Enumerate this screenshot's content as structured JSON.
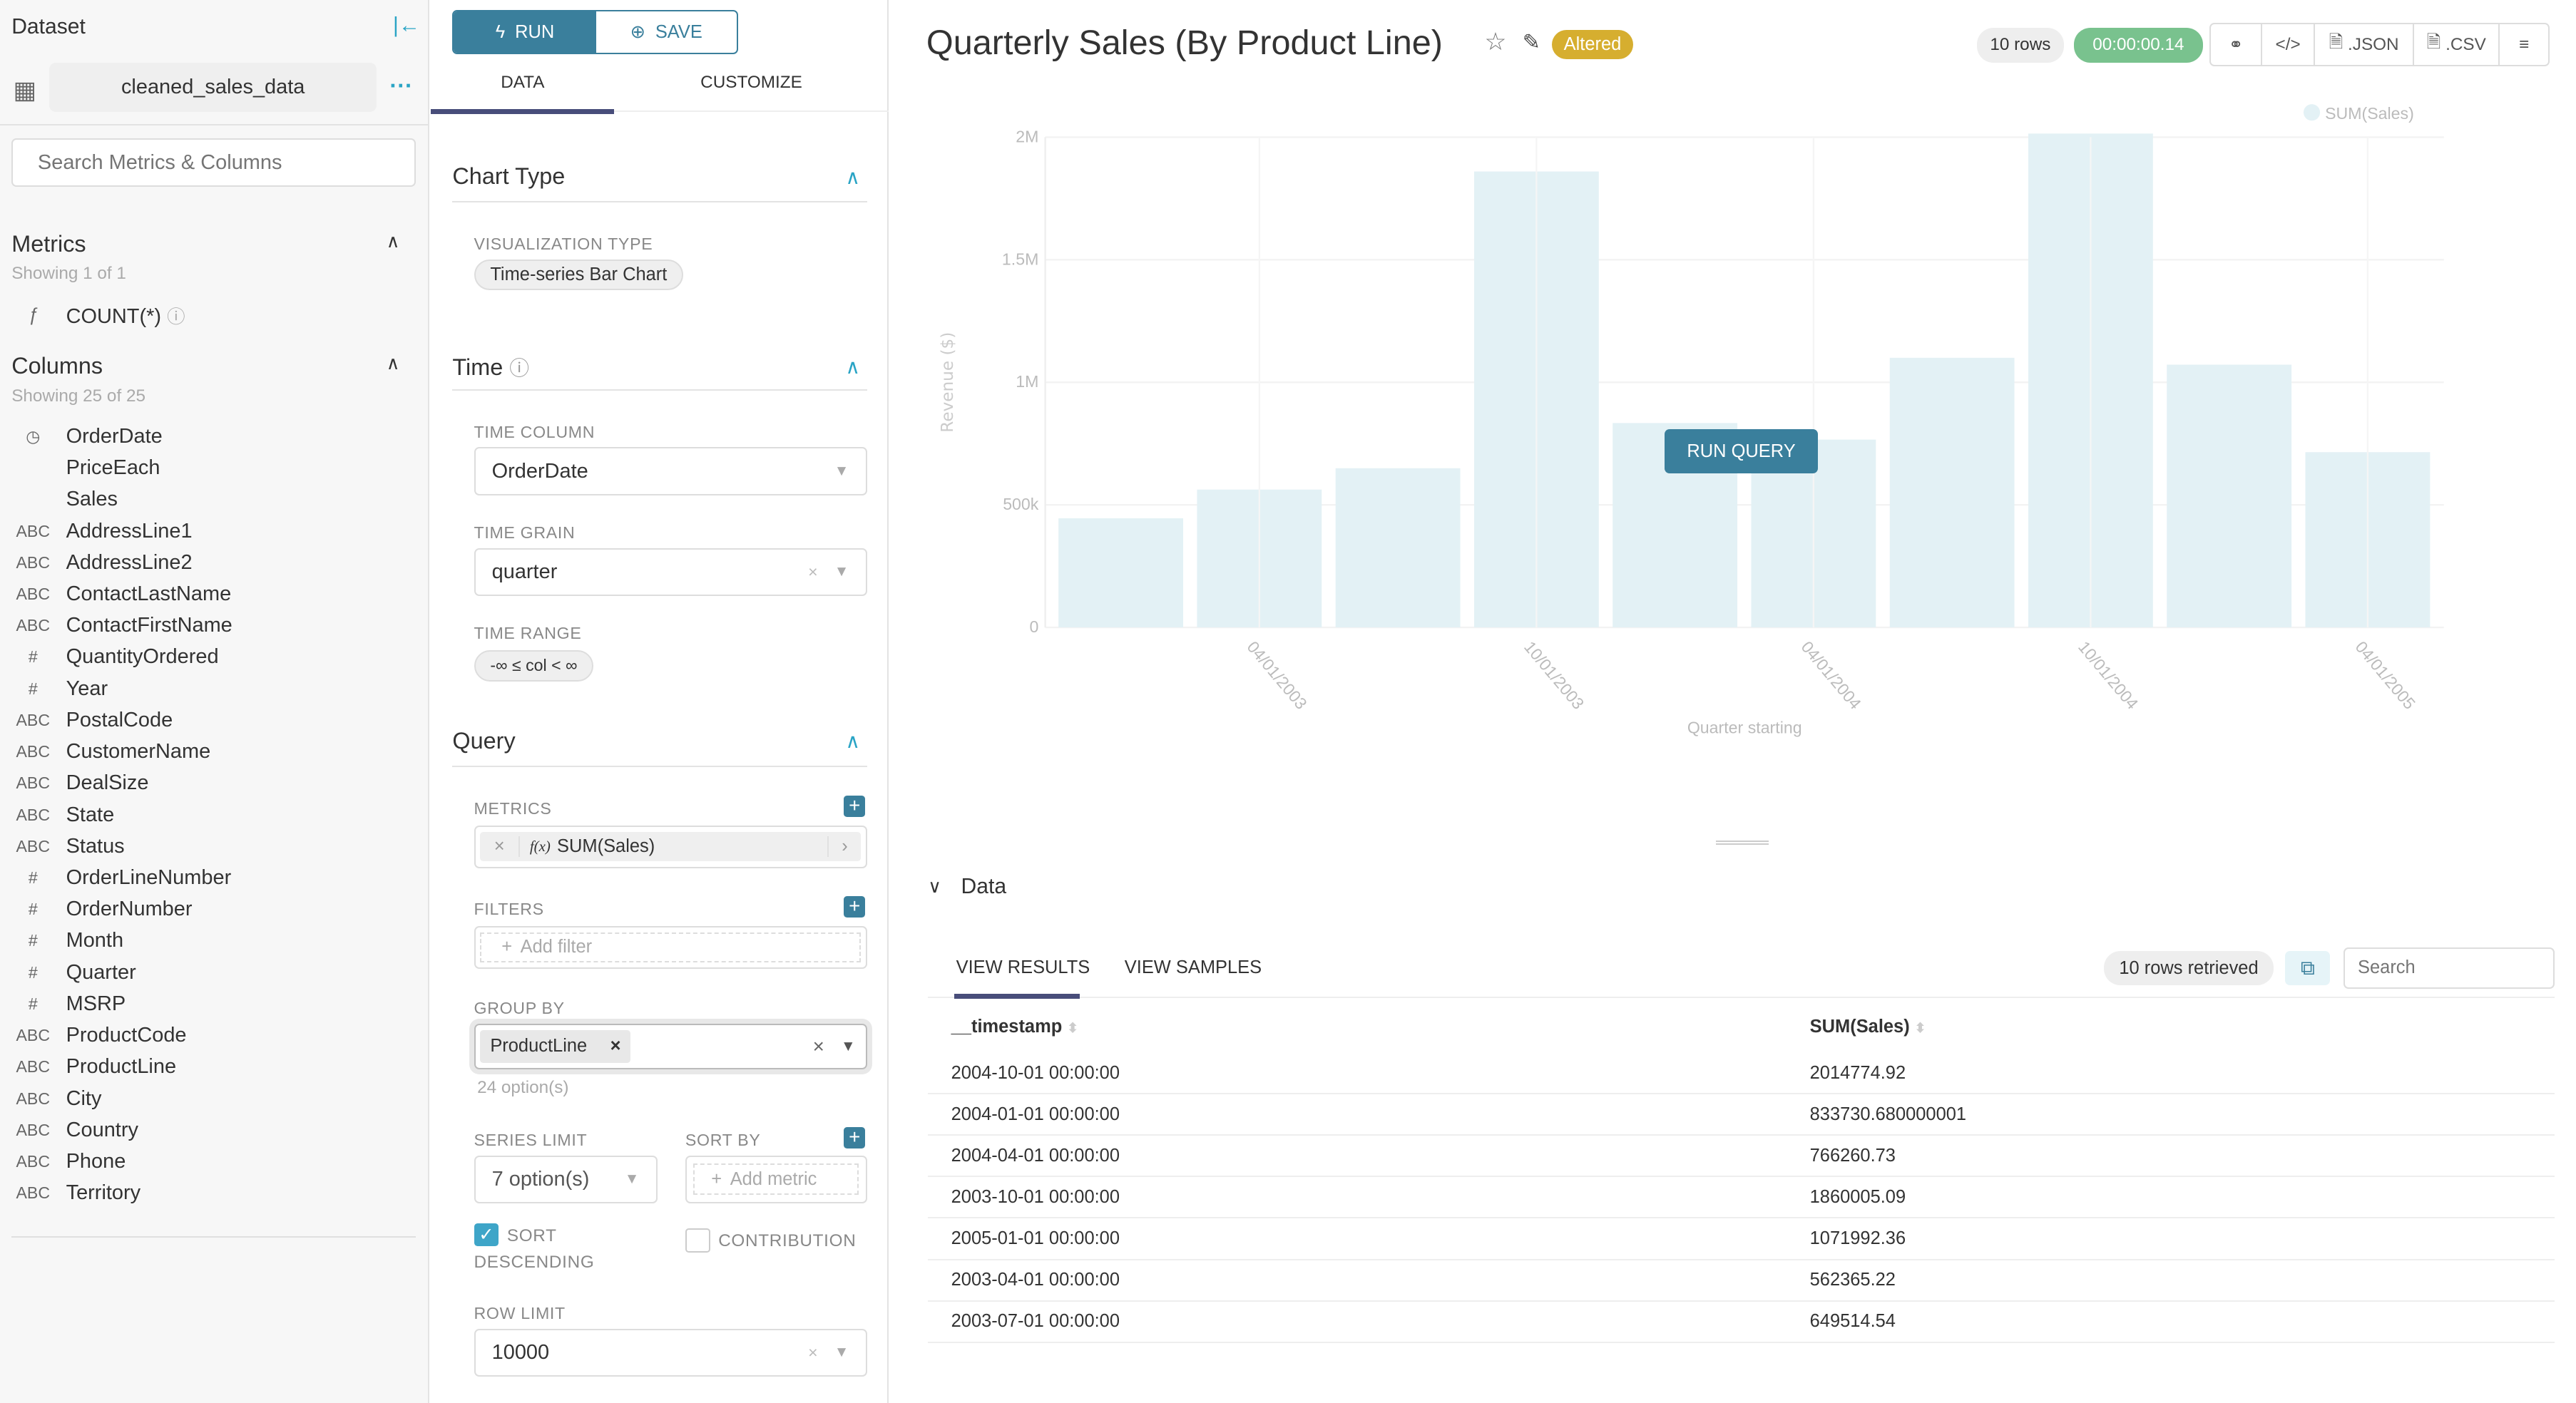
{
  "sidebar": {
    "title": "Dataset",
    "dataset_name": "cleaned_sales_data",
    "search_placeholder": "Search Metrics & Columns",
    "metrics_title": "Metrics",
    "metrics_count": "Showing 1 of 1",
    "metrics": [
      {
        "type": "ƒ",
        "label": "COUNT(*)"
      }
    ],
    "columns_title": "Columns",
    "columns_count": "Showing 25 of 25",
    "columns": [
      {
        "type": "clock",
        "label": "OrderDate"
      },
      {
        "type": "",
        "label": "PriceEach"
      },
      {
        "type": "",
        "label": "Sales"
      },
      {
        "type": "ABC",
        "label": "AddressLine1"
      },
      {
        "type": "ABC",
        "label": "AddressLine2"
      },
      {
        "type": "ABC",
        "label": "ContactLastName"
      },
      {
        "type": "ABC",
        "label": "ContactFirstName"
      },
      {
        "type": "#",
        "label": "QuantityOrdered"
      },
      {
        "type": "#",
        "label": "Year"
      },
      {
        "type": "ABC",
        "label": "PostalCode"
      },
      {
        "type": "ABC",
        "label": "CustomerName"
      },
      {
        "type": "ABC",
        "label": "DealSize"
      },
      {
        "type": "ABC",
        "label": "State"
      },
      {
        "type": "ABC",
        "label": "Status"
      },
      {
        "type": "#",
        "label": "OrderLineNumber"
      },
      {
        "type": "#",
        "label": "OrderNumber"
      },
      {
        "type": "#",
        "label": "Month"
      },
      {
        "type": "#",
        "label": "Quarter"
      },
      {
        "type": "#",
        "label": "MSRP"
      },
      {
        "type": "ABC",
        "label": "ProductCode"
      },
      {
        "type": "ABC",
        "label": "ProductLine"
      },
      {
        "type": "ABC",
        "label": "City"
      },
      {
        "type": "ABC",
        "label": "Country"
      },
      {
        "type": "ABC",
        "label": "Phone"
      },
      {
        "type": "ABC",
        "label": "Territory"
      }
    ]
  },
  "panel": {
    "run": "RUN",
    "save": "SAVE",
    "tabs": [
      "DATA",
      "CUSTOMIZE"
    ],
    "chart_type": {
      "title": "Chart Type",
      "viz_label": "VISUALIZATION TYPE",
      "viz_value": "Time-series Bar Chart"
    },
    "time": {
      "title": "Time",
      "col_label": "TIME COLUMN",
      "col_value": "OrderDate",
      "grain_label": "TIME GRAIN",
      "grain_value": "quarter",
      "range_label": "TIME RANGE",
      "range_value": "-∞ ≤ col < ∞"
    },
    "query": {
      "title": "Query",
      "metrics_label": "METRICS",
      "metric_value": "SUM(Sales)",
      "metric_prefix": "f(x)",
      "filters_label": "FILTERS",
      "filter_placeholder": "Add filter",
      "groupby_label": "GROUP BY",
      "groupby_value": "ProductLine",
      "groupby_hint": "24 option(s)",
      "series_label": "SERIES LIMIT",
      "series_value": "7 option(s)",
      "sortby_label": "SORT BY",
      "sortby_placeholder": "Add metric",
      "sort_desc_label1": "SORT",
      "sort_desc_label2": "DESCENDING",
      "sort_desc_checked": true,
      "contribution_label": "CONTRIBUTION",
      "contribution_checked": false,
      "rowlimit_label": "ROW LIMIT",
      "rowlimit_value": "10000"
    }
  },
  "header": {
    "title": "Quarterly Sales (By Product Line)",
    "altered": "Altered",
    "rows": "10 rows",
    "time": "00:00:00.14",
    "json": ".JSON",
    "csv": ".CSV",
    "altered_color": "#d6ae2f",
    "time_color": "#79c28e"
  },
  "run_query": "RUN QUERY",
  "chart_data": {
    "type": "bar",
    "legend": [
      "SUM(Sales)"
    ],
    "legend_placement": "top-right",
    "xlabel": "Quarter starting",
    "ylabel": "Revenue ($)",
    "ylim": [
      0,
      2000000
    ],
    "yticks": [
      "0",
      "500k",
      "1M",
      "1.5M",
      "2M"
    ],
    "ytick_values": [
      0,
      500000,
      1000000,
      1500000,
      2000000
    ],
    "x": [
      "2003-01-01",
      "2003-04-01",
      "2003-07-01",
      "2003-10-01",
      "2004-01-01",
      "2004-04-01",
      "2004-07-01",
      "2004-10-01",
      "2005-01-01",
      "2005-04-01"
    ],
    "xtick_labels": [
      "04/01/2003",
      "10/01/2003",
      "04/01/2004",
      "10/01/2004",
      "04/01/2005"
    ],
    "values": [
      445000,
      562365.22,
      649514.54,
      1860005.09,
      833730.68,
      766260.73,
      1100000,
      2014774.92,
      1071992.36,
      715000
    ],
    "color": "#e3f1f5",
    "grid": true
  },
  "data_section": {
    "title": "Data",
    "tabs": [
      "VIEW RESULTS",
      "VIEW SAMPLES"
    ],
    "retrieved": "10 rows retrieved",
    "search_placeholder": "Search",
    "columns": [
      "__timestamp",
      "SUM(Sales)"
    ],
    "rows": [
      [
        "2004-10-01 00:00:00",
        "2014774.92"
      ],
      [
        "2004-01-01 00:00:00",
        "833730.680000001"
      ],
      [
        "2004-04-01 00:00:00",
        "766260.73"
      ],
      [
        "2003-10-01 00:00:00",
        "1860005.09"
      ],
      [
        "2005-01-01 00:00:00",
        "1071992.36"
      ],
      [
        "2003-04-01 00:00:00",
        "562365.22"
      ],
      [
        "2003-07-01 00:00:00",
        "649514.54"
      ]
    ]
  }
}
